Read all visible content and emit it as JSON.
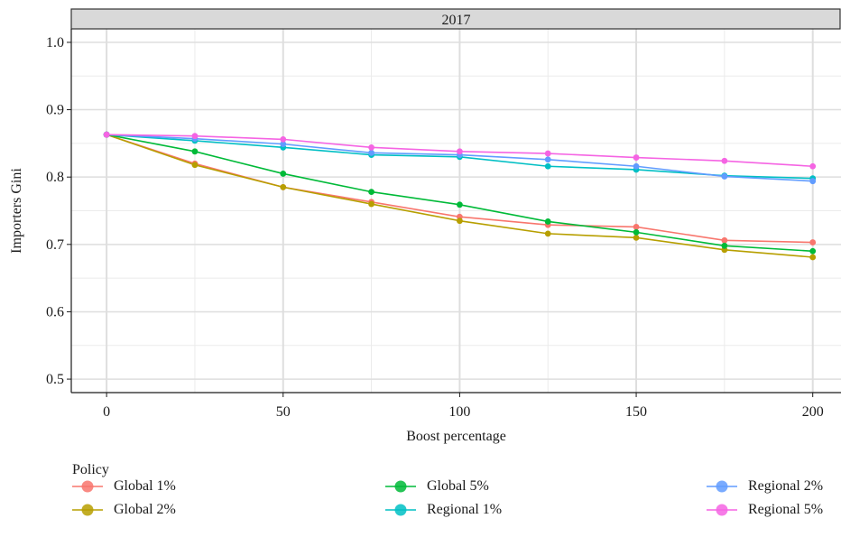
{
  "chart_data": {
    "type": "line",
    "facet_title": "2017",
    "xlabel": "Boost percentage",
    "ylabel": "Importers Gini",
    "xlim": [
      -10,
      208
    ],
    "ylim": [
      0.48,
      1.02
    ],
    "x_ticks": [
      0,
      50,
      100,
      150,
      200
    ],
    "y_ticks": [
      0.5,
      0.6,
      0.7,
      0.8,
      0.9,
      1.0
    ],
    "x_tick_labels": [
      "0",
      "50",
      "100",
      "150",
      "200"
    ],
    "y_tick_labels": [
      "0.5",
      "0.6",
      "0.7",
      "0.8",
      "0.9",
      "1.0"
    ],
    "x": [
      0,
      25,
      50,
      75,
      100,
      125,
      150,
      175,
      200
    ],
    "series": [
      {
        "name": "Global 1%",
        "color": "#F8766D",
        "values": [
          0.863,
          0.82,
          0.785,
          0.763,
          0.741,
          0.729,
          0.726,
          0.706,
          0.703
        ]
      },
      {
        "name": "Global 2%",
        "color": "#B79F00",
        "values": [
          0.863,
          0.818,
          0.785,
          0.76,
          0.735,
          0.716,
          0.71,
          0.692,
          0.681
        ]
      },
      {
        "name": "Global 5%",
        "color": "#00BA38",
        "values": [
          0.863,
          0.838,
          0.805,
          0.778,
          0.759,
          0.734,
          0.718,
          0.698,
          0.69
        ]
      },
      {
        "name": "Regional 1%",
        "color": "#00BFC4",
        "values": [
          0.863,
          0.854,
          0.844,
          0.833,
          0.83,
          0.816,
          0.811,
          0.802,
          0.798
        ]
      },
      {
        "name": "Regional 2%",
        "color": "#619CFF",
        "values": [
          0.863,
          0.857,
          0.849,
          0.836,
          0.833,
          0.826,
          0.816,
          0.801,
          0.794
        ]
      },
      {
        "name": "Regional 5%",
        "color": "#F564E3",
        "values": [
          0.863,
          0.861,
          0.856,
          0.844,
          0.838,
          0.835,
          0.829,
          0.824,
          0.816
        ]
      }
    ],
    "grid": true,
    "legend_title": "Policy",
    "legend_position": "bottom"
  }
}
